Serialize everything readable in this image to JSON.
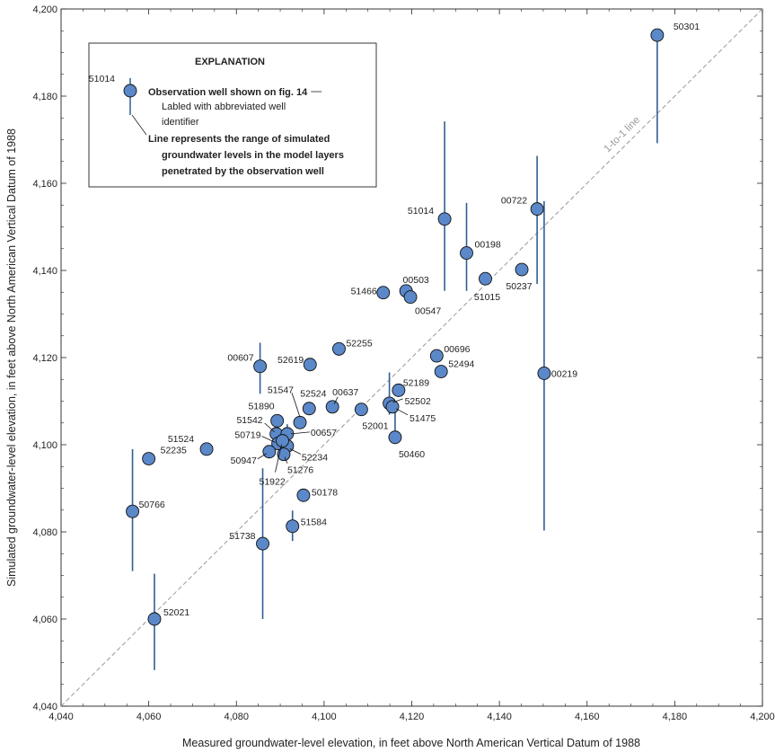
{
  "chart_data": {
    "type": "scatter",
    "xlabel": "Measured groundwater-level elevation, in feet above North American Vertical Datum of 1988",
    "ylabel": "Simulated groundwater-level elevation, in feet above North American Vertical Datum of 1988",
    "xlim": [
      4040,
      4200
    ],
    "ylim": [
      4040,
      4200
    ],
    "x_ticks": [
      4040,
      4060,
      4080,
      4100,
      4120,
      4140,
      4160,
      4180,
      4200
    ],
    "y_ticks": [
      4040,
      4060,
      4080,
      4100,
      4120,
      4140,
      4160,
      4180,
      4200
    ],
    "x_tick_labels": [
      "4,040",
      "4,060",
      "4,080",
      "4,100",
      "4,120",
      "4,140",
      "4,160",
      "4,180",
      "4,200"
    ],
    "y_tick_labels": [
      "4,040",
      "4,060",
      "4,080",
      "4,100",
      "4,120",
      "4,140",
      "4,160",
      "4,180",
      "4,200"
    ],
    "grid": false,
    "reference_line_label": "1-to-1 line",
    "marker_color": "#5b88c8",
    "range_line_color": "#2f5f94",
    "reference_line_color": "#999999",
    "points": [
      {
        "id": "50301",
        "x": 4176.0,
        "y": 4194.0,
        "range": [
          4169.2,
          4194.0
        ]
      },
      {
        "id": "51014",
        "x": 4127.5,
        "y": 4151.8,
        "range": [
          4135.3,
          4174.2
        ]
      },
      {
        "id": "00722",
        "x": 4148.6,
        "y": 4154.1,
        "range": [
          4136.9,
          4166.3
        ]
      },
      {
        "id": "00198",
        "x": 4132.5,
        "y": 4144.0,
        "range": [
          4135.3,
          4155.5
        ]
      },
      {
        "id": "51015",
        "x": 4136.8,
        "y": 4138.1
      },
      {
        "id": "50237",
        "x": 4145.1,
        "y": 4140.2
      },
      {
        "id": "00219",
        "x": 4150.2,
        "y": 4116.4,
        "range": [
          4080.3,
          4155.9
        ]
      },
      {
        "id": "51466",
        "x": 4113.5,
        "y": 4134.9
      },
      {
        "id": "00503",
        "x": 4118.7,
        "y": 4135.3
      },
      {
        "id": "00547",
        "x": 4119.7,
        "y": 4133.9
      },
      {
        "id": "52255",
        "x": 4103.4,
        "y": 4122.0,
        "range": [
          4120.4,
          4123.4
        ]
      },
      {
        "id": "00607",
        "x": 4085.4,
        "y": 4118.0,
        "range": [
          4111.7,
          4123.4
        ]
      },
      {
        "id": "52619",
        "x": 4096.8,
        "y": 4118.4
      },
      {
        "id": "00696",
        "x": 4125.7,
        "y": 4120.4
      },
      {
        "id": "52494",
        "x": 4126.7,
        "y": 4116.8
      },
      {
        "id": "52189",
        "x": 4117.0,
        "y": 4112.5
      },
      {
        "id": "52502",
        "x": 4114.9,
        "y": 4109.5,
        "range": [
          4106.9,
          4116.6
        ]
      },
      {
        "id": "51475",
        "x": 4115.6,
        "y": 4108.7
      },
      {
        "id": "50460",
        "x": 4116.2,
        "y": 4101.7,
        "range": [
          4101.7,
          4108.0
        ]
      },
      {
        "id": "52001",
        "x": 4108.5,
        "y": 4108.1
      },
      {
        "id": "00637",
        "x": 4101.9,
        "y": 4108.7
      },
      {
        "id": "52524",
        "x": 4096.6,
        "y": 4108.3
      },
      {
        "id": "51547",
        "x": 4094.5,
        "y": 4105.1
      },
      {
        "id": "51890",
        "x": 4089.3,
        "y": 4105.5
      },
      {
        "id": "51542",
        "x": 4089.1,
        "y": 4102.5
      },
      {
        "id": "00657",
        "x": 4091.6,
        "y": 4102.5,
        "range": [
          4102.5,
          4104.7
        ]
      },
      {
        "id": "50719",
        "x": 4089.5,
        "y": 4100.3
      },
      {
        "id": "52234",
        "x": 4091.6,
        "y": 4099.7
      },
      {
        "id": "51922",
        "x": 4090.5,
        "y": 4100.9
      },
      {
        "id": "51276",
        "x": 4090.8,
        "y": 4097.8
      },
      {
        "id": "50947",
        "x": 4087.5,
        "y": 4098.4
      },
      {
        "id": "52235",
        "x": 4060.0,
        "y": 4096.8
      },
      {
        "id": "51524",
        "x": 4073.2,
        "y": 4099.0
      },
      {
        "id": "50766",
        "x": 4056.3,
        "y": 4084.7,
        "range": [
          4071.0,
          4099.0
        ]
      },
      {
        "id": "51738",
        "x": 4086.0,
        "y": 4077.3,
        "range": [
          4060.0,
          4094.6
        ]
      },
      {
        "id": "51584",
        "x": 4092.8,
        "y": 4081.3,
        "range": [
          4077.9,
          4084.9
        ]
      },
      {
        "id": "50178",
        "x": 4095.3,
        "y": 4088.4
      },
      {
        "id": "52021",
        "x": 4061.3,
        "y": 4060.0,
        "range": [
          4048.3,
          4070.4
        ]
      }
    ],
    "legend": {
      "placement": "top-left",
      "title": "EXPLANATION",
      "sample_id": "51014",
      "line1": "Observation well shown on fig. 14",
      "line2a": "Labled with abbreviated well",
      "line2b": "identifier",
      "line3a": "Line represents the range of simulated",
      "line3b": "groundwater levels in the model layers",
      "line3c": "penetrated by the observation well"
    }
  }
}
